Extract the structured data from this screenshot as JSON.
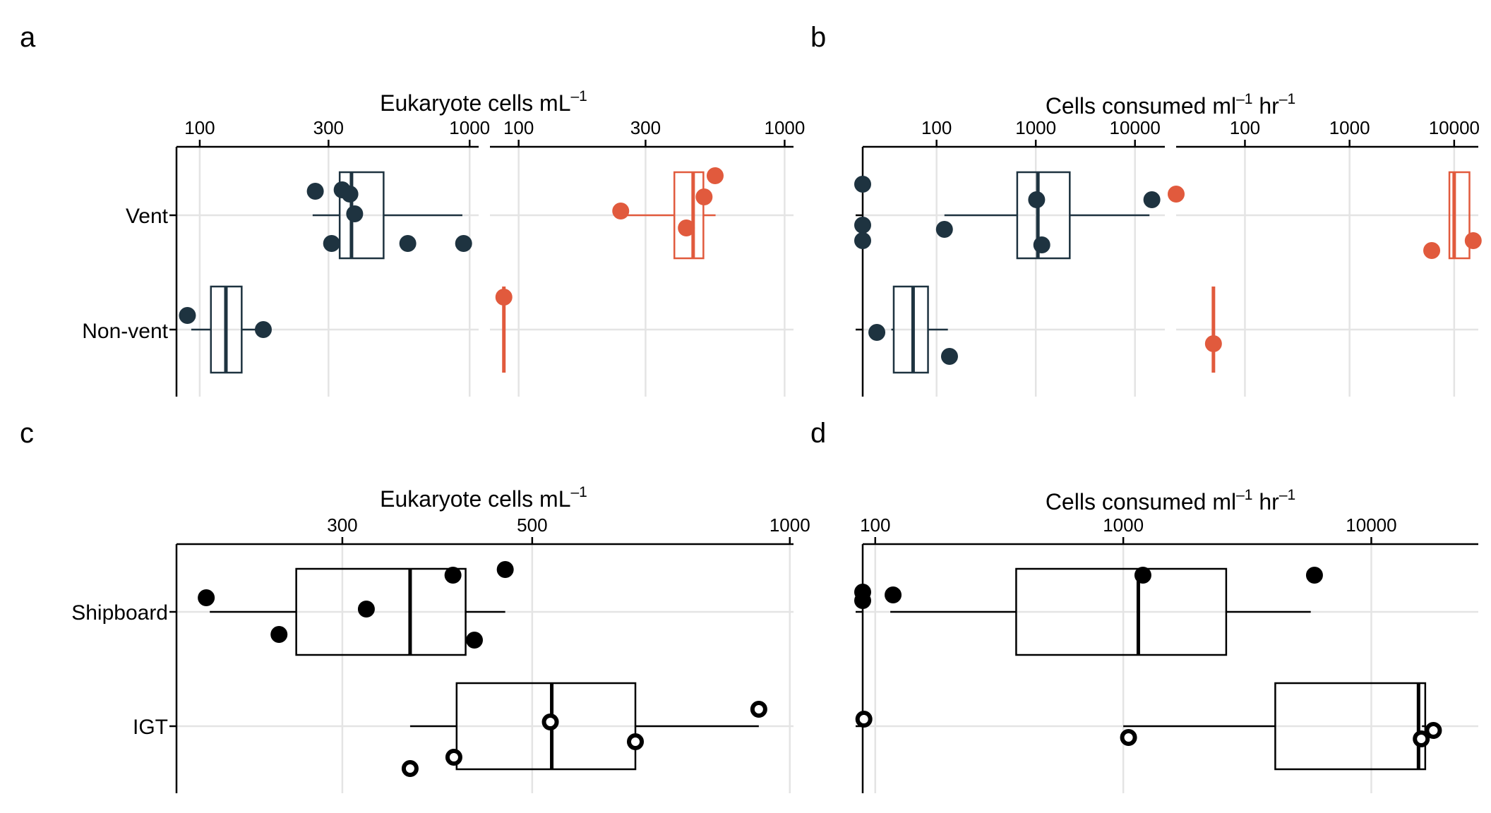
{
  "colors": {
    "navy": "#1e3340",
    "red": "#e15a3d",
    "black": "#000000",
    "grid": "#e4e4e4"
  },
  "chart_data": [
    {
      "panel": "a",
      "type": "box",
      "xlabel": "Eukaryote cells  mL",
      "xlabel_unit": "–1",
      "scale": "log",
      "categories": [
        "Vent",
        "Non-vent"
      ],
      "facets": [
        {
          "color": "#1e3340",
          "xticks": [
            100,
            300,
            1000
          ],
          "xlim": [
            82,
            1080
          ],
          "groups": [
            {
              "category": "Vent",
              "whisker": [
                262,
                940
              ],
              "box": [
                330,
                480
              ],
              "median": [
                365
              ],
              "points": [
                {
                  "x": 268,
                  "j": 0.17
                },
                {
                  "x": 337,
                  "j": 0.18
                },
                {
                  "x": 360,
                  "j": 0.15
                },
                {
                  "x": 375,
                  "j": 0.01
                },
                {
                  "x": 308,
                  "j": -0.2
                },
                {
                  "x": 590,
                  "j": -0.2
                },
                {
                  "x": 950,
                  "j": -0.2
                }
              ]
            },
            {
              "category": "Non-vent",
              "whisker": [
                93,
                170
              ],
              "box": [
                110,
                143
              ],
              "median": [
                125
              ],
              "points": [
                {
                  "x": 90,
                  "j": 0.1
                },
                {
                  "x": 172,
                  "j": 0.0
                }
              ]
            }
          ]
        },
        {
          "color": "#e15a3d",
          "xticks": [
            100,
            300,
            1000
          ],
          "xlim": [
            78,
            1080
          ],
          "groups": [
            {
              "category": "Vent",
              "whisker": [
                240,
                550
              ],
              "box": [
                385,
                495
              ],
              "median": [
                453
              ],
              "points": [
                {
                  "x": 548,
                  "j": 0.28
                },
                {
                  "x": 498,
                  "j": 0.13
                },
                {
                  "x": 242,
                  "j": 0.03
                },
                {
                  "x": 427,
                  "j": -0.09
                }
              ]
            },
            {
              "category": "Non-vent",
              "whisker": [
                88,
                88
              ],
              "box": [
                88,
                88
              ],
              "median": [
                88
              ],
              "points": [
                {
                  "x": 88,
                  "j": 0.23
                }
              ]
            }
          ]
        }
      ]
    },
    {
      "panel": "b",
      "type": "box",
      "xlabel": "Cells consumed  ml",
      "xlabel_unit": "–1",
      "xlabel_unit2": " hr",
      "xlabel_unit3": "–1",
      "scale": "log",
      "categories": [
        "Vent",
        "Non-vent"
      ],
      "facets": [
        {
          "color": "#1e3340",
          "xticks": [
            100,
            1000,
            10000
          ],
          "xlim": [
            18,
            20000
          ],
          "groups": [
            {
              "category": "Vent",
              "whisker": [
                120,
                14000
              ],
              "box": [
                650,
                2200
              ],
              "median": [
                1050
              ],
              "points": [
                {
                  "x": 18,
                  "j": 0.22
                },
                {
                  "x": 1020,
                  "j": 0.11
                },
                {
                  "x": 14800,
                  "j": 0.11
                },
                {
                  "x": 18,
                  "j": -0.07
                },
                {
                  "x": 18,
                  "j": -0.18
                },
                {
                  "x": 120,
                  "j": -0.1
                },
                {
                  "x": 1150,
                  "j": -0.21
                }
              ]
            },
            {
              "category": "Non-vent",
              "whisker": [
                35,
                130
              ],
              "box": [
                37,
                82
              ],
              "median": [
                58
              ],
              "points": [
                {
                  "x": 25,
                  "j": -0.02
                },
                {
                  "x": 135,
                  "j": -0.19
                }
              ]
            }
          ]
        },
        {
          "color": "#e15a3d",
          "xticks": [
            100,
            1000,
            10000
          ],
          "xlim": [
            22,
            17000
          ],
          "groups": [
            {
              "category": "Vent",
              "whisker": [
                9000,
                14000
              ],
              "box": [
                9000,
                14000
              ],
              "median": [
                10000
              ],
              "points": [
                {
                  "x": 22,
                  "j": 0.15
                },
                {
                  "x": 15200,
                  "j": -0.18
                },
                {
                  "x": 6100,
                  "j": -0.25
                }
              ]
            },
            {
              "category": "Non-vent",
              "whisker": [
                50,
                50
              ],
              "box": [
                50,
                50
              ],
              "median": [
                50
              ],
              "points": [
                {
                  "x": 50,
                  "j": -0.1
                }
              ]
            }
          ]
        }
      ]
    },
    {
      "panel": "c",
      "type": "box",
      "xlabel": "Eukaryote cells  mL",
      "xlabel_unit": "–1",
      "scale": "log",
      "categories": [
        "Shipboard",
        "IGT"
      ],
      "facets": [
        {
          "color": "#000000",
          "xticks": [
            300,
            500,
            1000
          ],
          "xlim": [
            192,
            1010
          ],
          "groups": [
            {
              "category": "Shipboard",
              "whisker": [
                210,
                465
              ],
              "box": [
                265,
                418
              ],
              "median": [
                360
              ],
              "points": [
                {
                  "x": 208,
                  "j": 0.1
                },
                {
                  "x": 253,
                  "j": -0.16
                },
                {
                  "x": 320,
                  "j": 0.02
                },
                {
                  "x": 404,
                  "j": 0.26
                },
                {
                  "x": 465,
                  "j": 0.3
                },
                {
                  "x": 428,
                  "j": -0.2
                }
              ],
              "open": false
            },
            {
              "category": "IGT",
              "whisker": [
                360,
                920
              ],
              "box": [
                408,
                660
              ],
              "median": [
                527
              ],
              "points": [
                {
                  "x": 920,
                  "j": 0.12
                },
                {
                  "x": 525,
                  "j": 0.03
                },
                {
                  "x": 660,
                  "j": -0.11
                },
                {
                  "x": 405,
                  "j": -0.22
                },
                {
                  "x": 360,
                  "j": -0.3
                }
              ],
              "open": true
            }
          ]
        }
      ]
    },
    {
      "panel": "d",
      "type": "box",
      "xlabel": "Cells consumed  ml",
      "xlabel_unit": "–1",
      "xlabel_unit2": " hr",
      "xlabel_unit3": "–1",
      "scale": "log",
      "categories": [
        "Shipboard",
        "IGT"
      ],
      "facets": [
        {
          "color": "#000000",
          "xticks": [
            100,
            1000,
            10000
          ],
          "xlim": [
            89,
            27000
          ],
          "groups": [
            {
              "category": "Shipboard",
              "whisker": [
                115,
                5700
              ],
              "box": [
                370,
                2600
              ],
              "median": [
                1150
              ],
              "points": [
                {
                  "x": 89,
                  "j": 0.14
                },
                {
                  "x": 89,
                  "j": 0.08
                },
                {
                  "x": 118,
                  "j": 0.12
                },
                {
                  "x": 1200,
                  "j": 0.26
                },
                {
                  "x": 5900,
                  "j": 0.26
                }
              ],
              "open": false
            },
            {
              "category": "IGT",
              "whisker": [
                1000,
                16000
              ],
              "box": [
                4100,
                16500
              ],
              "median": [
                15500
              ],
              "points": [
                {
                  "x": 90,
                  "j": 0.05
                },
                {
                  "x": 1050,
                  "j": -0.08
                },
                {
                  "x": 15900,
                  "j": -0.09
                },
                {
                  "x": 17800,
                  "j": -0.03
                }
              ],
              "open": true
            }
          ]
        }
      ]
    }
  ]
}
